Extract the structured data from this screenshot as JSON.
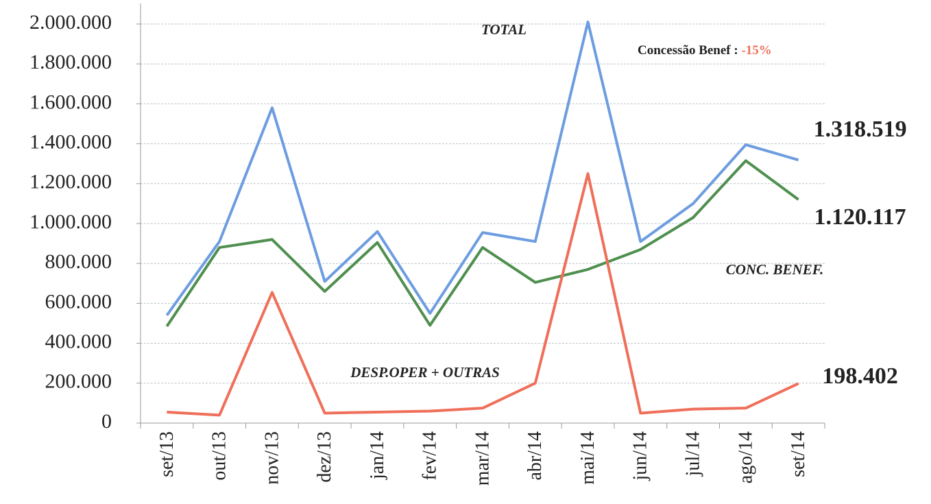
{
  "chart_data": {
    "type": "line",
    "categories": [
      "set/13",
      "out/13",
      "nov/13",
      "dez/13",
      "jan/14",
      "fev/14",
      "mar/14",
      "abr/14",
      "mai/14",
      "jun/14",
      "jul/14",
      "ago/14",
      "set/14"
    ],
    "series": [
      {
        "name": "TOTAL",
        "color": "#6d9de0",
        "values": [
          540000,
          910000,
          1580000,
          710000,
          960000,
          550000,
          955000,
          910000,
          2010000,
          910000,
          1100000,
          1395000,
          1318519
        ],
        "value_labels": [
          null,
          null,
          null,
          null,
          null,
          null,
          null,
          null,
          null,
          null,
          null,
          null,
          "1.318.519"
        ]
      },
      {
        "name": "CONC. BENEF.",
        "color": "#4f8f4f",
        "values": [
          485000,
          880000,
          920000,
          660000,
          905000,
          490000,
          880000,
          705000,
          770000,
          870000,
          1030000,
          1315000,
          1120117
        ],
        "value_labels": [
          null,
          null,
          null,
          null,
          null,
          null,
          null,
          null,
          null,
          null,
          null,
          null,
          "1.120.117"
        ]
      },
      {
        "name": "DESP.OPER + OUTRAS",
        "color": "#ef6f5a",
        "values": [
          55000,
          40000,
          655000,
          50000,
          55000,
          60000,
          75000,
          200000,
          1250000,
          50000,
          70000,
          75000,
          198402
        ],
        "value_labels": [
          null,
          null,
          null,
          null,
          null,
          null,
          null,
          null,
          null,
          null,
          null,
          null,
          "198.402"
        ]
      }
    ],
    "annotation": {
      "text": "Concessão  Benef : ",
      "highlight": "-15%",
      "highlight_color": "#ef6f5a"
    },
    "ylim": [
      0,
      2000000
    ],
    "yticks": [
      0,
      {
        "value": 200000,
        "label": "200.000"
      },
      {
        "value": 400000,
        "label": "400.000"
      },
      {
        "value": 600000,
        "label": "600.000"
      },
      {
        "value": 800000,
        "label": "800.000"
      },
      {
        "value": 1000000,
        "label": "1.000.000"
      },
      {
        "value": 1200000,
        "label": "1.200.000"
      },
      {
        "value": 1400000,
        "label": "1.400.000"
      },
      {
        "value": 1600000,
        "label": "1.600.000"
      },
      {
        "value": 1800000,
        "label": "1.800.000"
      },
      {
        "value": 2000000,
        "label": "2.000.000"
      }
    ],
    "grid": true
  }
}
